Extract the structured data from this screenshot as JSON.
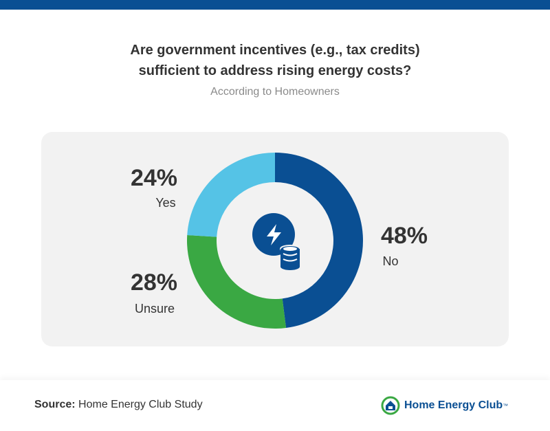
{
  "chart_data": {
    "type": "donut",
    "title": "Are government incentives (e.g., tax credits) sufficient to address rising energy costs?",
    "subtitle": "According to Homeowners",
    "categories": [
      "No",
      "Unsure",
      "Yes"
    ],
    "values": [
      48,
      28,
      24
    ],
    "value_labels": [
      "48%",
      "28%",
      "24%"
    ],
    "colors": [
      "#0a4f93",
      "#3aa843",
      "#55c3e6"
    ]
  },
  "footer": {
    "source_label": "Source:",
    "source": "Home Energy Club Study",
    "brand": "Home Energy Club",
    "trademark": "™"
  }
}
